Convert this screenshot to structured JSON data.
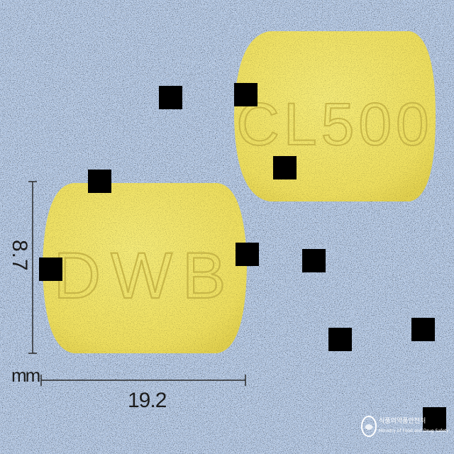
{
  "photo": {
    "background": "#b3c7e3",
    "pill_color": "#f0e46a",
    "pill_front": {
      "imprint": "DWB"
    },
    "pill_back": {
      "imprint": "CL500"
    }
  },
  "dimensions": {
    "width": "19.2",
    "height": "8.7",
    "unit": "mm"
  },
  "watermark": {
    "line1": "식품의약품안전처",
    "line2": "Ministry of Food and Drug Safety"
  }
}
